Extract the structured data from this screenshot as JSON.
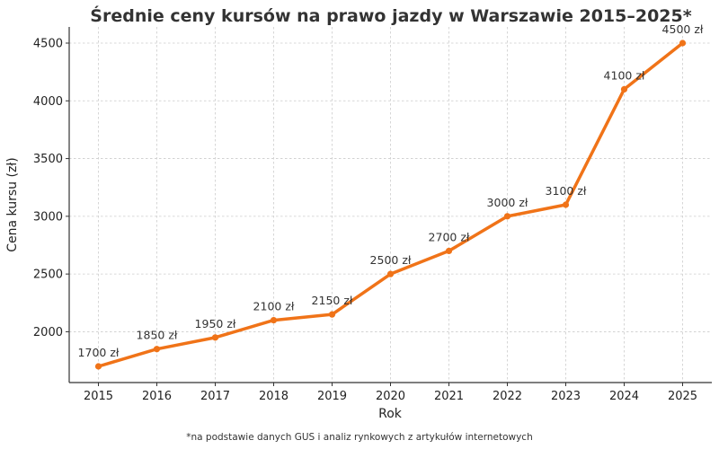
{
  "chart_data": {
    "type": "line",
    "title": "Średnie ceny kursów na prawo jazdy w Warszawie 2015–2025*",
    "xlabel": "Rok",
    "ylabel": "Cena kursu (zł)",
    "footnote": "*na podstawie danych GUS i analiz rynkowych z artykułów internetowych",
    "x": [
      2015,
      2016,
      2017,
      2018,
      2019,
      2020,
      2021,
      2022,
      2023,
      2024,
      2025
    ],
    "series": [
      {
        "name": "Cena kursu",
        "values": [
          1700,
          1850,
          1950,
          2100,
          2150,
          2500,
          2700,
          3000,
          3100,
          4100,
          4500
        ],
        "labels": [
          "1700 zł",
          "1850 zł",
          "1950 zł",
          "2100 zł",
          "2150 zł",
          "2500 zł",
          "2700 zł",
          "3000 zł",
          "3100 zł",
          "4100 zł",
          "4500 zł"
        ],
        "color": "#f07318"
      }
    ],
    "x_ticks": [
      "2015",
      "2016",
      "2017",
      "2018",
      "2019",
      "2020",
      "2021",
      "2022",
      "2023",
      "2024",
      "2025"
    ],
    "y_ticks": [
      2000,
      2500,
      3000,
      3500,
      4000,
      4500
    ],
    "ylim": [
      1560,
      4640
    ],
    "xlim": [
      2014.5,
      2025.5
    ],
    "grid": true,
    "legend": null,
    "colors": {
      "line": "#f07318",
      "grid": "#cccccc",
      "axis": "#333333",
      "text": "#333333"
    }
  }
}
